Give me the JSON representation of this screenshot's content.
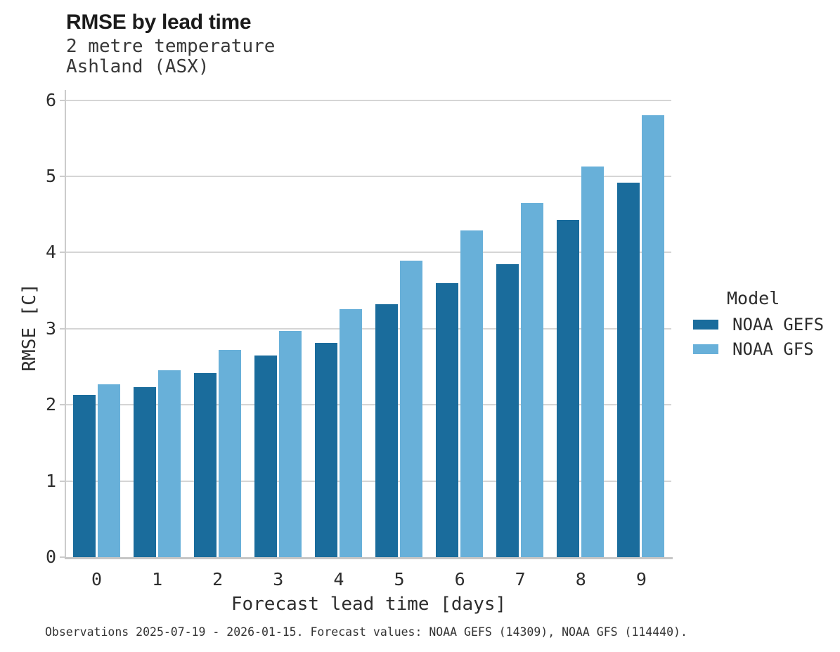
{
  "header": {
    "title": "RMSE by lead time",
    "subtitle_line1": "2 metre temperature",
    "subtitle_line2": "Ashland (ASX)"
  },
  "chart_data": {
    "type": "bar",
    "title": "RMSE by lead time",
    "subtitle": [
      "2 metre temperature",
      "Ashland (ASX)"
    ],
    "categories": [
      "0",
      "1",
      "2",
      "3",
      "4",
      "5",
      "6",
      "7",
      "8",
      "9"
    ],
    "series": [
      {
        "name": "NOAA GEFS",
        "color": "#1a6c9c",
        "values": [
          2.13,
          2.23,
          2.42,
          2.65,
          2.81,
          3.32,
          3.6,
          3.85,
          4.43,
          4.92
        ]
      },
      {
        "name": "NOAA GFS",
        "color": "#68b0d9",
        "values": [
          2.27,
          2.45,
          2.72,
          2.97,
          3.26,
          3.89,
          4.29,
          4.65,
          5.13,
          5.8
        ]
      }
    ],
    "xlabel": "Forecast lead time [days]",
    "ylabel": "RMSE [C]",
    "ylim": [
      0,
      6
    ],
    "yticks": [
      0,
      1,
      2,
      3,
      4,
      5,
      6
    ],
    "grid": true,
    "legend_title": "Model",
    "legend_position": "center-right"
  },
  "legend": {
    "title": "Model",
    "items": [
      {
        "label": "NOAA GEFS",
        "color": "#1a6c9c"
      },
      {
        "label": "NOAA GFS",
        "color": "#68b0d9"
      }
    ]
  },
  "footer": {
    "note": "Observations 2025-07-19 - 2026-01-15. Forecast values: NOAA GEFS (14309), NOAA GFS (114440)."
  },
  "colors": {
    "bar_dark": "#1a6c9c",
    "bar_light": "#68b0d9",
    "gridline": "#d5d5d5",
    "spine": "#cccccc",
    "title_text": "#1b1b1b",
    "body_text": "#2d2d2d"
  }
}
